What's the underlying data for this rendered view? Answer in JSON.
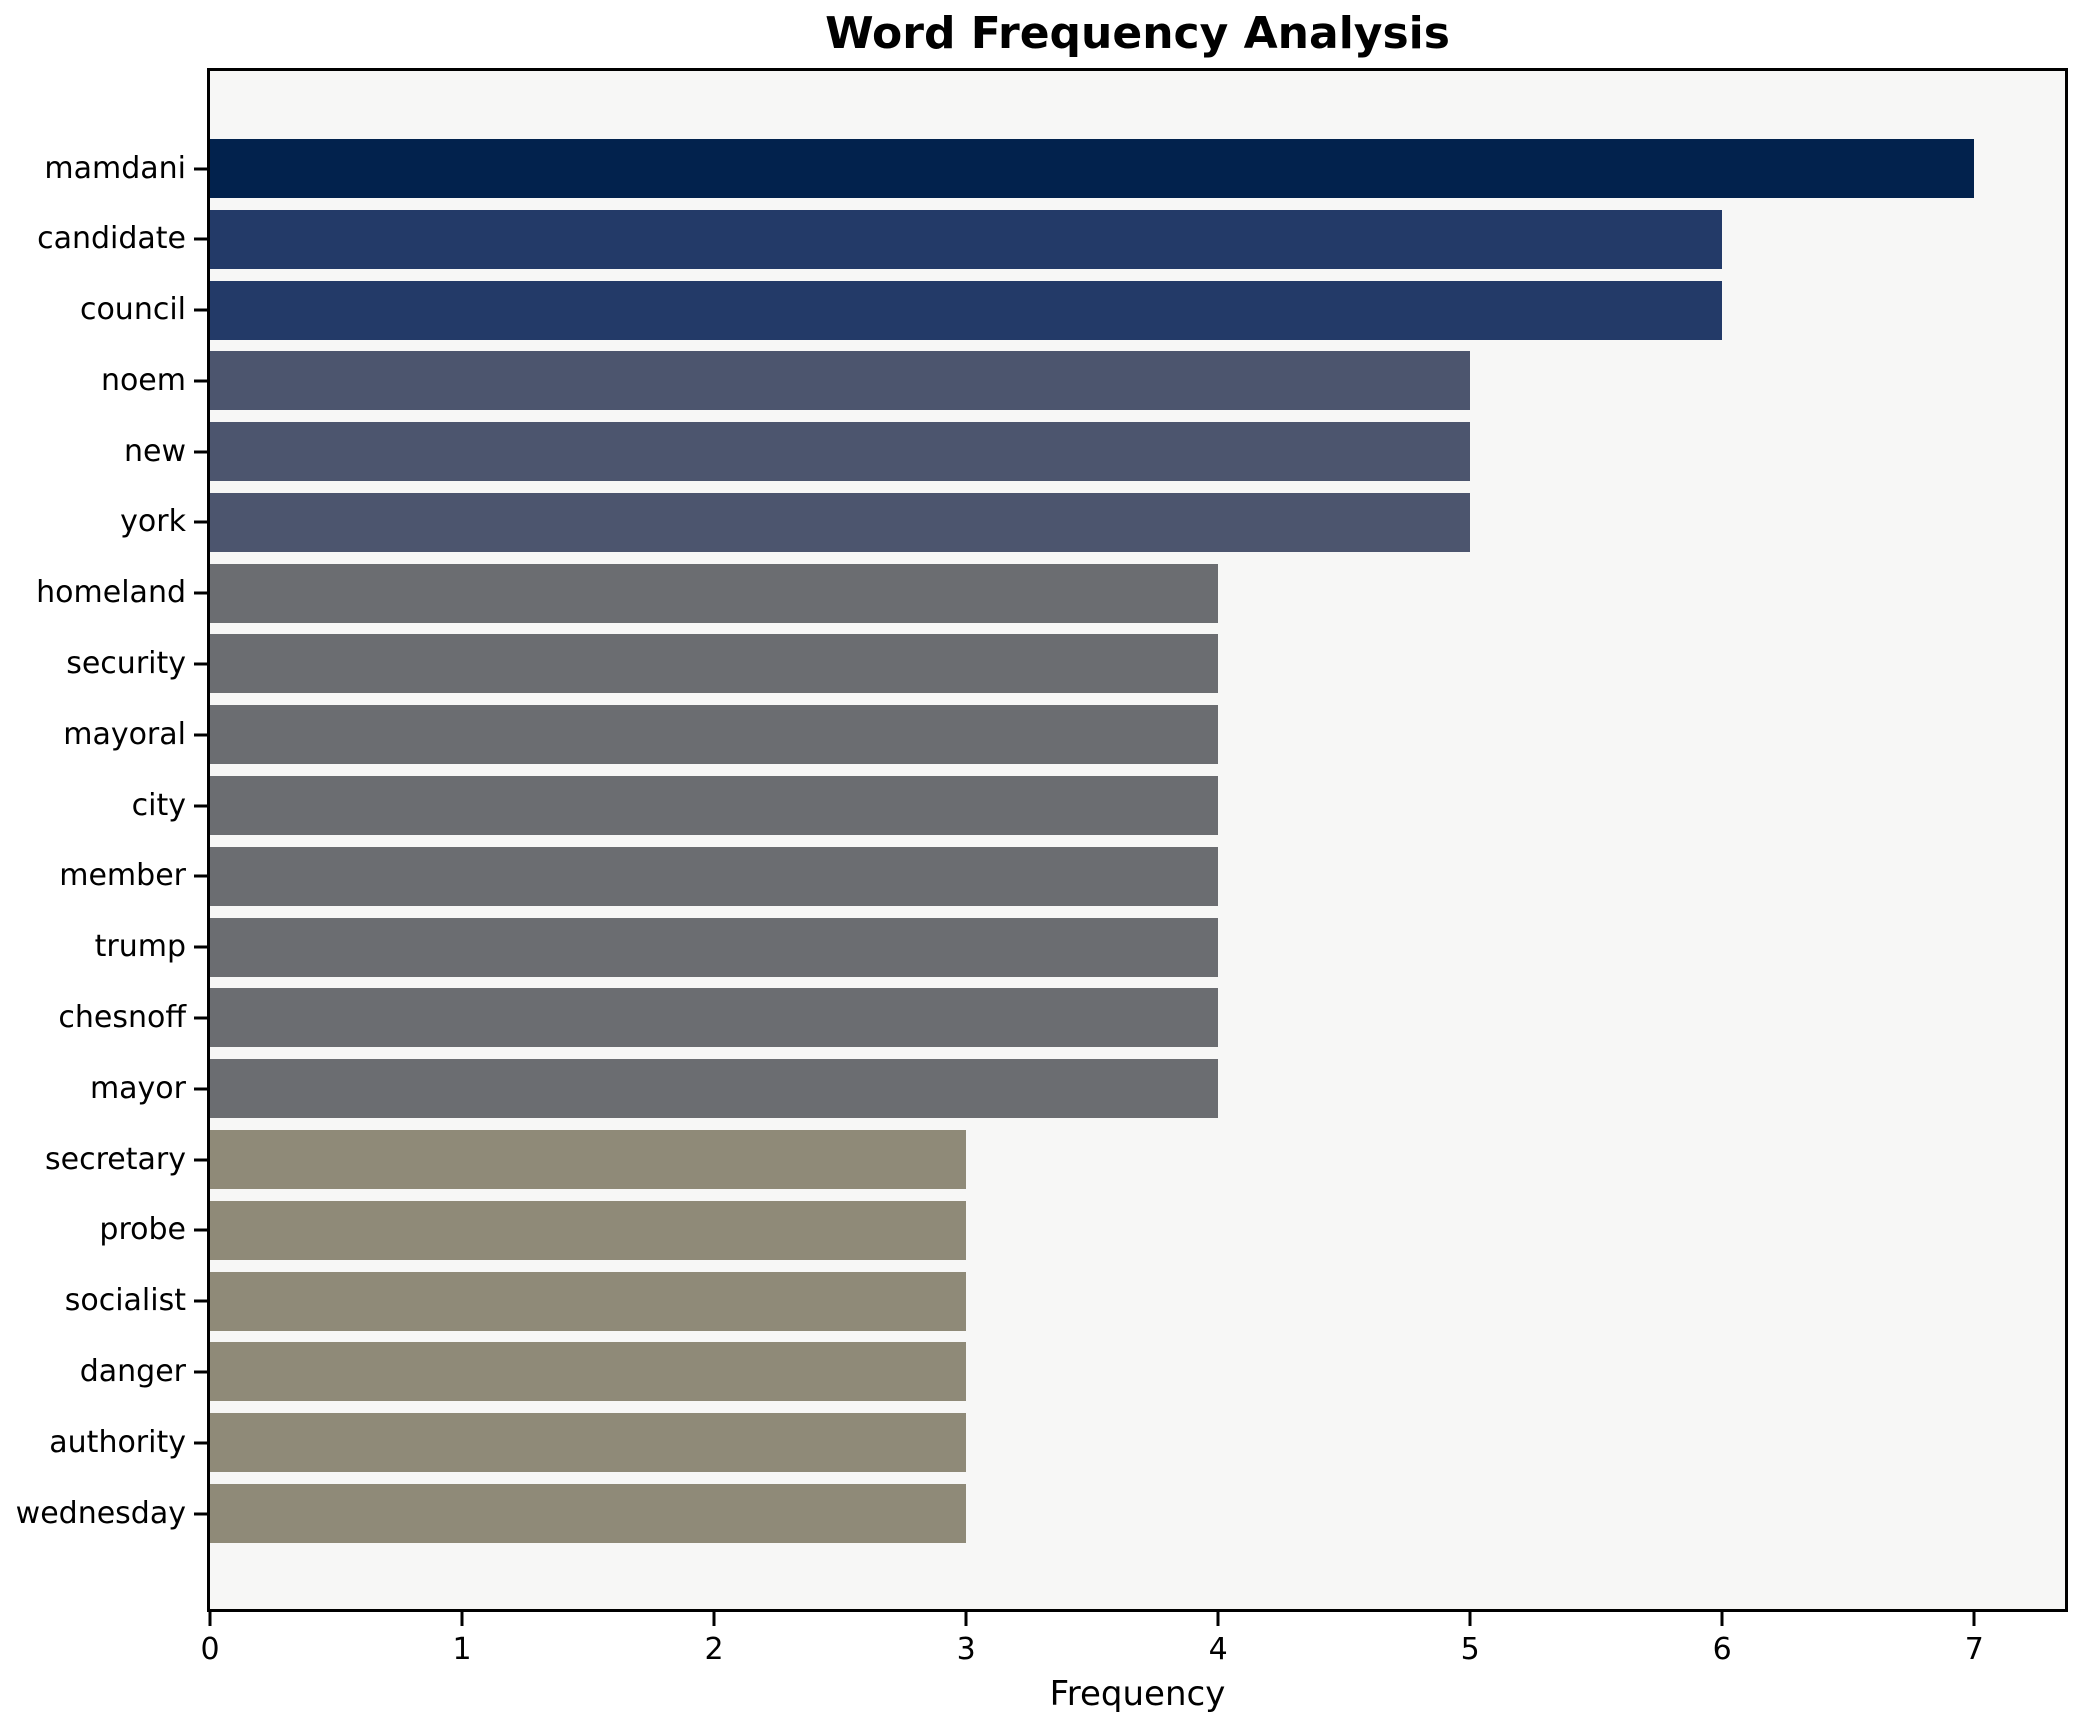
{
  "chart_data": {
    "type": "bar",
    "orientation": "horizontal",
    "title": "Word Frequency Analysis",
    "xlabel": "Frequency",
    "ylabel": "",
    "categories": [
      "mamdani",
      "candidate",
      "council",
      "noem",
      "new",
      "york",
      "homeland",
      "security",
      "mayoral",
      "city",
      "member",
      "trump",
      "chesnoff",
      "mayor",
      "secretary",
      "probe",
      "socialist",
      "danger",
      "authority",
      "wednesday"
    ],
    "values": [
      7,
      6,
      6,
      5,
      5,
      5,
      4,
      4,
      4,
      4,
      4,
      4,
      4,
      4,
      3,
      3,
      3,
      3,
      3,
      3
    ],
    "bar_colors": [
      "#02224d",
      "#233a68",
      "#233a68",
      "#4c556e",
      "#4c556e",
      "#4c556e",
      "#6b6d71",
      "#6b6d71",
      "#6b6d71",
      "#6b6d71",
      "#6b6d71",
      "#6b6d71",
      "#6b6d71",
      "#6b6d71",
      "#8f8a78",
      "#8f8a78",
      "#8f8a78",
      "#8f8a78",
      "#8f8a78",
      "#8f8a78"
    ],
    "value_color_map": {
      "7": "#02224d",
      "6": "#233a68",
      "5": "#4c556e",
      "4": "#6b6d71",
      "3": "#8f8a78"
    },
    "xticks": [
      0,
      1,
      2,
      3,
      4,
      5,
      6,
      7
    ],
    "xlim": [
      0,
      7.36
    ],
    "grid": false,
    "legend_position": "none",
    "plot_background": "#f7f7f6",
    "figure_background": "#ffffff",
    "spine_color": "#000000"
  }
}
